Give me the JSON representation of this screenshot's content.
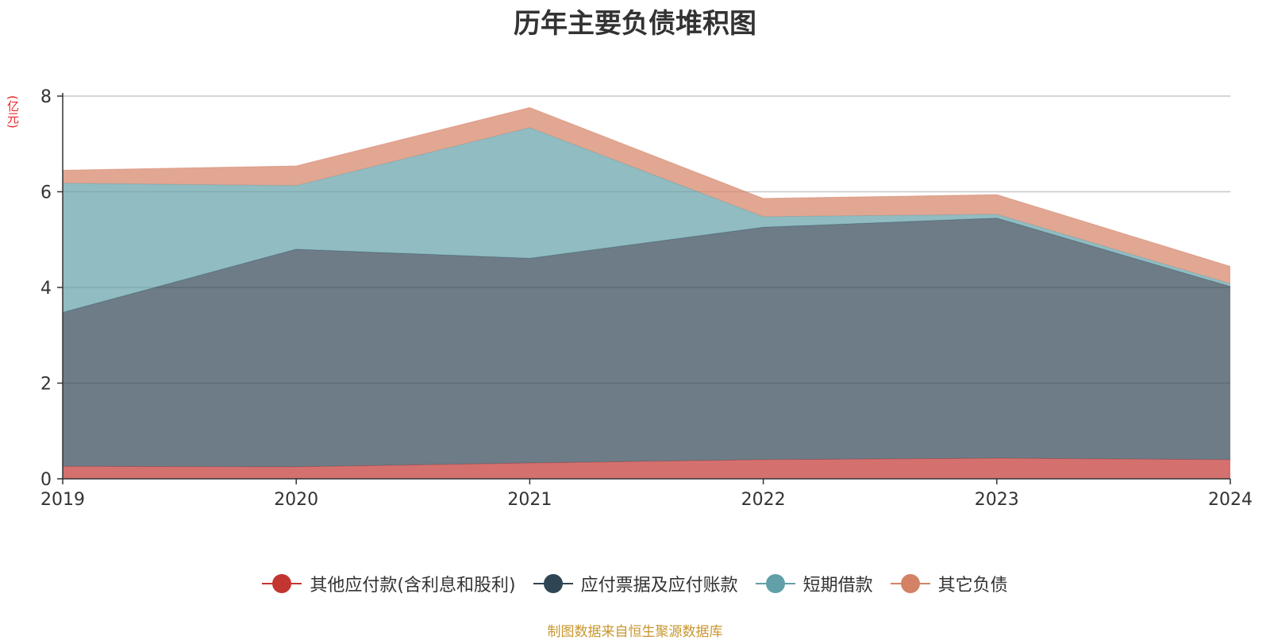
{
  "chart_data": {
    "type": "area",
    "stacked": true,
    "title": "历年主要负债堆积图",
    "ylabel": "(亿元)",
    "xlabel": "",
    "x": [
      "2019",
      "2020",
      "2021",
      "2022",
      "2023",
      "2024"
    ],
    "ylim": [
      0,
      8
    ],
    "yticks": [
      "0",
      "2",
      "4",
      "6",
      "8"
    ],
    "grid": true,
    "legend_position": "bottom",
    "series": [
      {
        "name": "其他应付款(含利息和股利)",
        "color": "#c23531",
        "values": [
          0.26,
          0.25,
          0.33,
          0.4,
          0.43,
          0.4
        ]
      },
      {
        "name": "应付票据及应付账款",
        "color": "#2f4554",
        "values": [
          3.22,
          4.55,
          4.28,
          4.86,
          5.02,
          3.62
        ]
      },
      {
        "name": "短期借款",
        "color": "#61a0a8",
        "values": [
          2.7,
          1.33,
          2.73,
          0.22,
          0.08,
          0.06
        ]
      },
      {
        "name": "其它负债",
        "color": "#d48265",
        "values": [
          0.27,
          0.41,
          0.42,
          0.38,
          0.41,
          0.36
        ]
      }
    ]
  },
  "source_note": "制图数据来自恒生聚源数据库"
}
